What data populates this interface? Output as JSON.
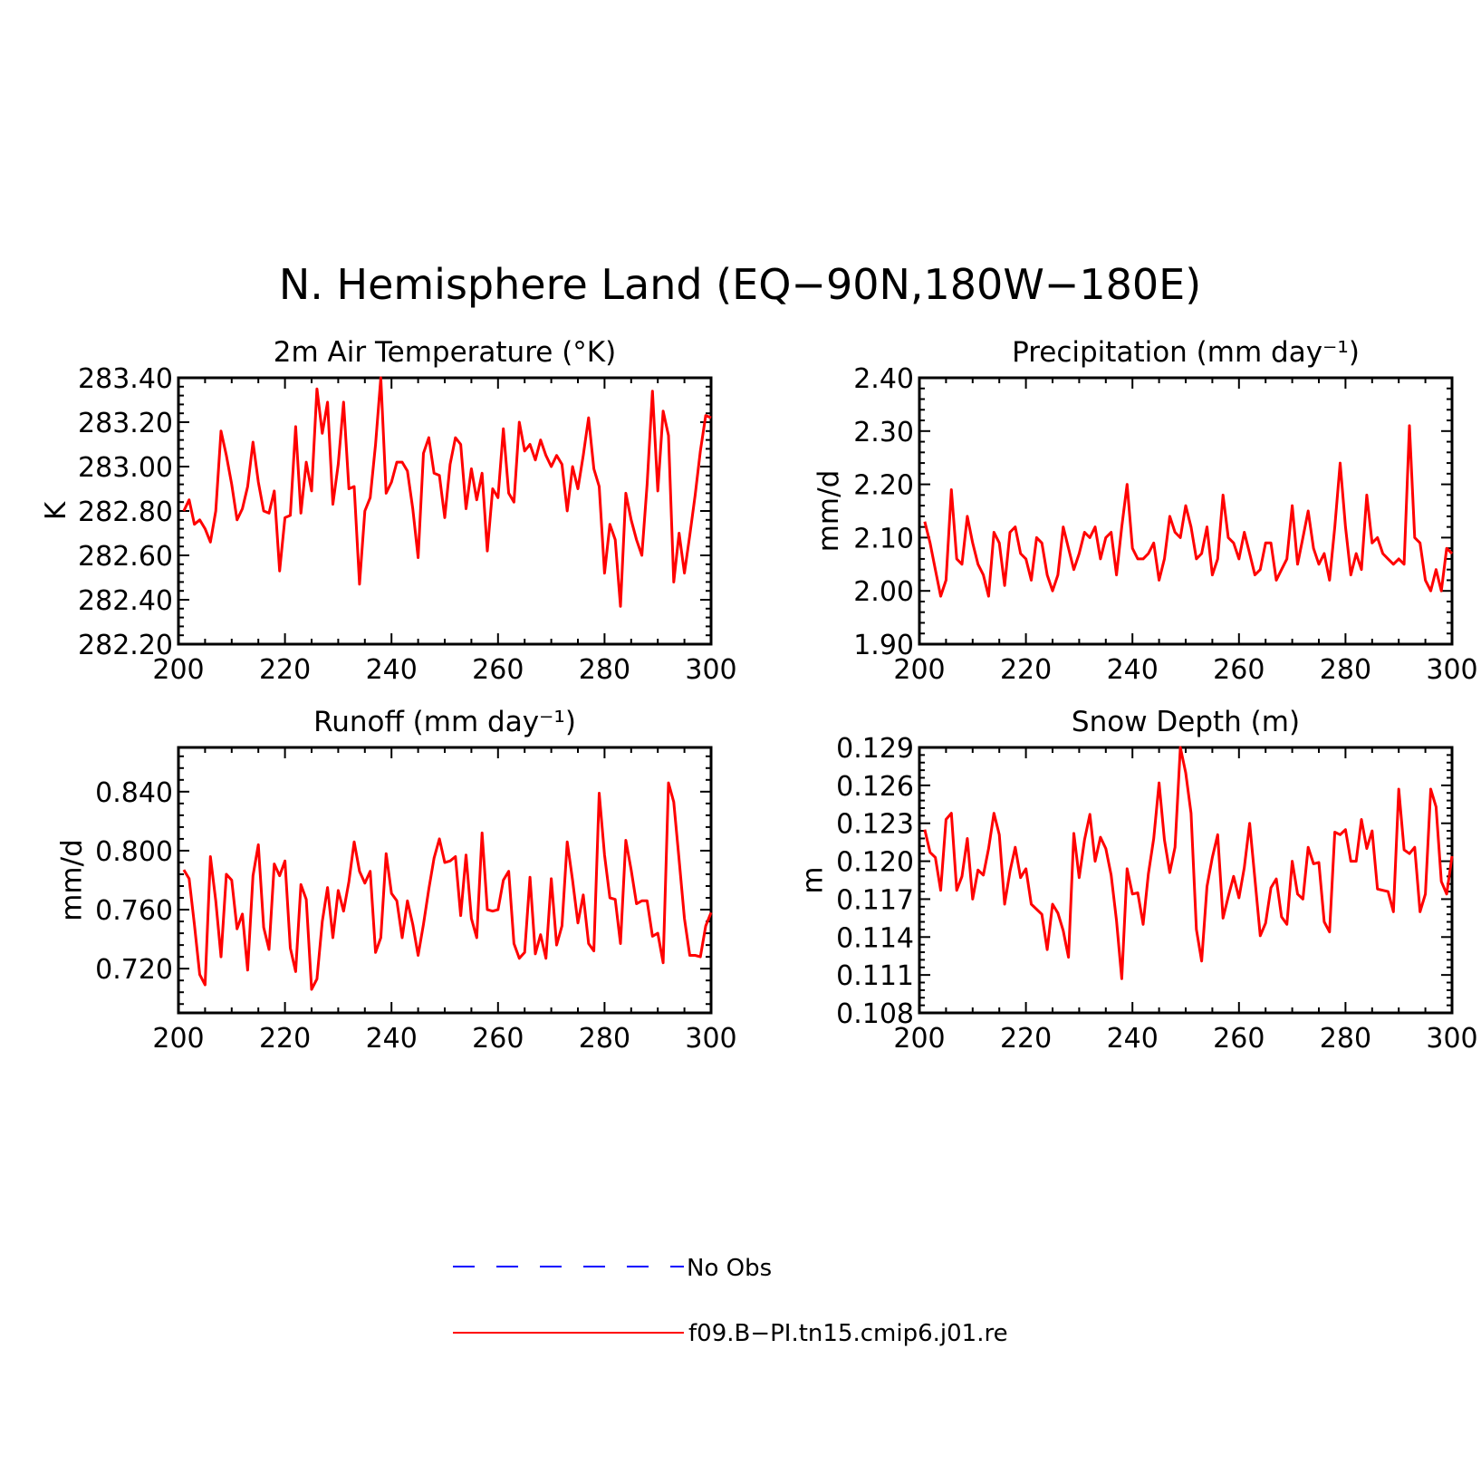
{
  "title": "N. Hemisphere Land (EQ−90N,180W−180E)",
  "legend": [
    {
      "label": "No Obs",
      "color": "#0000ff",
      "style": "dashed"
    },
    {
      "label": "f09.B−PI.tn15.cmip6.j01.re",
      "color": "#ff0000",
      "style": "solid"
    }
  ],
  "chart_data": [
    {
      "type": "line",
      "title": "2m Air Temperature (°K)",
      "ylabel": "K",
      "xlim": [
        200,
        300
      ],
      "ylim": [
        282.2,
        283.4
      ],
      "xticks": [
        "200",
        "220",
        "240",
        "260",
        "280",
        "300"
      ],
      "yticks": [
        "282.20",
        "282.40",
        "282.60",
        "282.80",
        "283.00",
        "283.20",
        "283.40"
      ],
      "x_start": 201,
      "series": [
        {
          "name": "f09.B−PI.tn15.cmip6.j01.re",
          "color": "#ff0000",
          "values": [
            282.8,
            282.85,
            282.74,
            282.76,
            282.72,
            282.66,
            282.8,
            283.16,
            283.05,
            282.92,
            282.76,
            282.81,
            282.91,
            283.11,
            282.93,
            282.8,
            282.79,
            282.89,
            282.53,
            282.77,
            282.78,
            283.18,
            282.79,
            283.02,
            282.89,
            283.35,
            283.15,
            283.29,
            282.83,
            283.01,
            283.29,
            282.9,
            282.91,
            282.47,
            282.8,
            282.86,
            283.1,
            283.4,
            282.88,
            282.93,
            283.02,
            283.02,
            282.98,
            282.81,
            282.59,
            283.06,
            283.13,
            282.97,
            282.96,
            282.77,
            283.01,
            283.13,
            283.1,
            282.81,
            282.99,
            282.85,
            282.97,
            282.62,
            282.9,
            282.86,
            283.17,
            282.88,
            282.84,
            283.2,
            283.07,
            283.1,
            283.03,
            283.12,
            283.05,
            283.0,
            283.05,
            283.01,
            282.8,
            283.0,
            282.9,
            283.05,
            283.22,
            282.99,
            282.91,
            282.52,
            282.74,
            282.67,
            282.37,
            282.88,
            282.76,
            282.67,
            282.6,
            282.92,
            283.34,
            282.89,
            283.25,
            283.14,
            282.48,
            282.7,
            282.52,
            282.69,
            282.87,
            283.07,
            283.23,
            283.22
          ]
        }
      ]
    },
    {
      "type": "line",
      "title": "Precipitation (mm day⁻¹)",
      "ylabel": "mm/d",
      "xlim": [
        200,
        300
      ],
      "ylim": [
        1.9,
        2.4
      ],
      "xticks": [
        "200",
        "220",
        "240",
        "260",
        "280",
        "300"
      ],
      "yticks": [
        "1.90",
        "2.00",
        "2.10",
        "2.20",
        "2.30",
        "2.40"
      ],
      "x_start": 201,
      "series": [
        {
          "name": "f09.B−PI.tn15.cmip6.j01.re",
          "color": "#ff0000",
          "values": [
            2.13,
            2.09,
            2.04,
            1.99,
            2.02,
            2.19,
            2.06,
            2.05,
            2.14,
            2.09,
            2.05,
            2.03,
            1.99,
            2.11,
            2.09,
            2.01,
            2.11,
            2.12,
            2.07,
            2.06,
            2.02,
            2.1,
            2.09,
            2.03,
            2.0,
            2.03,
            2.12,
            2.08,
            2.04,
            2.07,
            2.11,
            2.1,
            2.12,
            2.06,
            2.1,
            2.11,
            2.03,
            2.12,
            2.2,
            2.08,
            2.06,
            2.06,
            2.07,
            2.09,
            2.02,
            2.06,
            2.14,
            2.11,
            2.1,
            2.16,
            2.12,
            2.06,
            2.07,
            2.12,
            2.03,
            2.06,
            2.18,
            2.1,
            2.09,
            2.06,
            2.11,
            2.07,
            2.03,
            2.04,
            2.09,
            2.09,
            2.02,
            2.04,
            2.06,
            2.16,
            2.05,
            2.1,
            2.15,
            2.08,
            2.05,
            2.07,
            2.02,
            2.12,
            2.24,
            2.12,
            2.03,
            2.07,
            2.04,
            2.18,
            2.09,
            2.1,
            2.07,
            2.06,
            2.05,
            2.06,
            2.05,
            2.31,
            2.1,
            2.09,
            2.02,
            2.0,
            2.04,
            2.0,
            2.08,
            2.07
          ]
        }
      ]
    },
    {
      "type": "line",
      "title": "Runoff (mm day⁻¹)",
      "ylabel": "mm/d",
      "xlim": [
        200,
        300
      ],
      "ylim": [
        0.69,
        0.87
      ],
      "xticks": [
        "200",
        "220",
        "240",
        "260",
        "280",
        "300"
      ],
      "yticks": [
        "0.720",
        "0.760",
        "0.800",
        "0.840"
      ],
      "x_start": 201,
      "series": [
        {
          "name": "f09.B−PI.tn15.cmip6.j01.re",
          "color": "#ff0000",
          "values": [
            0.787,
            0.781,
            0.75,
            0.716,
            0.709,
            0.796,
            0.766,
            0.728,
            0.784,
            0.78,
            0.747,
            0.757,
            0.719,
            0.783,
            0.804,
            0.748,
            0.733,
            0.791,
            0.783,
            0.793,
            0.734,
            0.718,
            0.777,
            0.767,
            0.706,
            0.713,
            0.752,
            0.775,
            0.741,
            0.773,
            0.759,
            0.779,
            0.806,
            0.786,
            0.778,
            0.786,
            0.731,
            0.741,
            0.798,
            0.771,
            0.766,
            0.741,
            0.766,
            0.75,
            0.729,
            0.75,
            0.774,
            0.795,
            0.808,
            0.792,
            0.793,
            0.796,
            0.756,
            0.797,
            0.754,
            0.741,
            0.812,
            0.76,
            0.759,
            0.76,
            0.78,
            0.786,
            0.737,
            0.727,
            0.731,
            0.782,
            0.73,
            0.743,
            0.727,
            0.781,
            0.736,
            0.749,
            0.806,
            0.78,
            0.751,
            0.77,
            0.737,
            0.732,
            0.839,
            0.797,
            0.768,
            0.767,
            0.737,
            0.807,
            0.787,
            0.764,
            0.766,
            0.766,
            0.742,
            0.744,
            0.724,
            0.846,
            0.833,
            0.794,
            0.754,
            0.729,
            0.729,
            0.728,
            0.749,
            0.758
          ]
        }
      ]
    },
    {
      "type": "line",
      "title": "Snow Depth (m)",
      "ylabel": "m",
      "xlim": [
        200,
        300
      ],
      "ylim": [
        0.108,
        0.129
      ],
      "xticks": [
        "200",
        "220",
        "240",
        "260",
        "280",
        "300"
      ],
      "yticks": [
        "0.108",
        "0.111",
        "0.114",
        "0.117",
        "0.120",
        "0.123",
        "0.126",
        "0.129"
      ],
      "x_start": 201,
      "series": [
        {
          "name": "f09.B−PI.tn15.cmip6.j01.re",
          "color": "#ff0000",
          "values": [
            0.1225,
            0.1207,
            0.1203,
            0.1177,
            0.1233,
            0.1238,
            0.1177,
            0.1188,
            0.1218,
            0.117,
            0.1193,
            0.1189,
            0.121,
            0.1238,
            0.1221,
            0.1166,
            0.1192,
            0.1211,
            0.1187,
            0.1194,
            0.1166,
            0.1162,
            0.1158,
            0.113,
            0.1166,
            0.1159,
            0.1145,
            0.1124,
            0.1222,
            0.1187,
            0.1217,
            0.1237,
            0.12,
            0.1219,
            0.121,
            0.1189,
            0.1153,
            0.1107,
            0.1194,
            0.1174,
            0.1175,
            0.115,
            0.119,
            0.1218,
            0.1262,
            0.1217,
            0.1191,
            0.1211,
            0.129,
            0.127,
            0.1238,
            0.1146,
            0.1121,
            0.118,
            0.1203,
            0.1221,
            0.1155,
            0.1172,
            0.1188,
            0.1171,
            0.1195,
            0.123,
            0.1186,
            0.1141,
            0.1151,
            0.1179,
            0.1186,
            0.1156,
            0.115,
            0.12,
            0.1174,
            0.117,
            0.1211,
            0.1198,
            0.1199,
            0.1152,
            0.1144,
            0.1223,
            0.1221,
            0.1225,
            0.12,
            0.12,
            0.1233,
            0.121,
            0.1224,
            0.1178,
            0.1177,
            0.1176,
            0.116,
            0.1257,
            0.1209,
            0.1206,
            0.1211,
            0.116,
            0.1174,
            0.1257,
            0.1243,
            0.1184,
            0.1174,
            0.1204
          ]
        }
      ]
    }
  ]
}
